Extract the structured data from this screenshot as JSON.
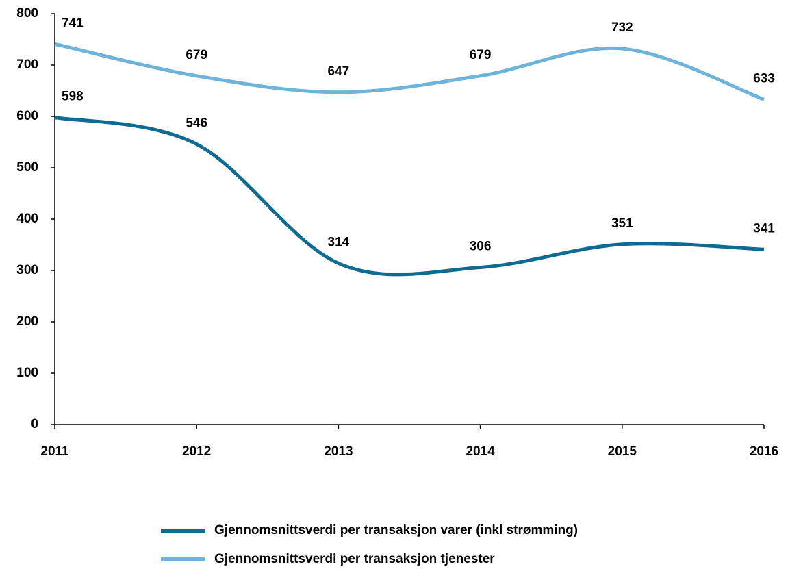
{
  "chart_data": {
    "type": "line",
    "x": [
      2011,
      2012,
      2013,
      2014,
      2015,
      2016
    ],
    "xlim": [
      2011,
      2016
    ],
    "xticks": [
      2011,
      2012,
      2013,
      2014,
      2015,
      2016
    ],
    "ylim": [
      0,
      800
    ],
    "yticks": [
      0,
      100,
      200,
      300,
      400,
      500,
      600,
      700,
      800
    ],
    "grid": false,
    "legend": "bottom",
    "data_labels": true,
    "series": [
      {
        "name": "Gjennomsnittsverdi per transaksjon varer (inkl strømming)",
        "color": "#106b92",
        "values": [
          598,
          546,
          314,
          306,
          351,
          341
        ]
      },
      {
        "name": "Gjennomsnittsverdi per transaksjon tjenester",
        "color": "#6db3da",
        "values": [
          741,
          679,
          647,
          679,
          732,
          633
        ]
      }
    ]
  }
}
